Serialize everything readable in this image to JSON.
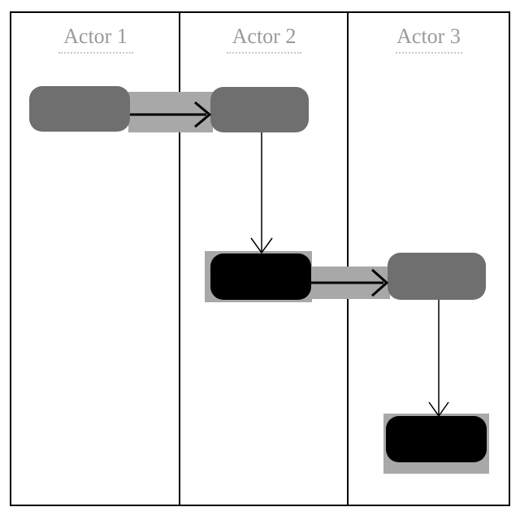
{
  "lanes": [
    {
      "title": "Actor 1"
    },
    {
      "title": "Actor 2"
    },
    {
      "title": "Actor 3"
    }
  ],
  "colors": {
    "activity_grey": "#6f6f6f",
    "activity_black": "#000000",
    "highlight": "#a8a8a8",
    "lane_title": "#9a9a9a",
    "border": "#000000"
  },
  "nodes": [
    {
      "id": "a1-activity",
      "lane": "Actor 1",
      "style": "grey"
    },
    {
      "id": "a2-activity-1",
      "lane": "Actor 2",
      "style": "grey"
    },
    {
      "id": "a2-activity-2",
      "lane": "Actor 2",
      "style": "black"
    },
    {
      "id": "a3-activity-1",
      "lane": "Actor 3",
      "style": "grey"
    },
    {
      "id": "a3-activity-2",
      "lane": "Actor 3",
      "style": "black"
    }
  ],
  "edges": [
    {
      "from": "a1-activity",
      "to": "a2-activity-1",
      "style": "bold"
    },
    {
      "from": "a2-activity-1",
      "to": "a2-activity-2",
      "style": "thin"
    },
    {
      "from": "a2-activity-2",
      "to": "a3-activity-1",
      "style": "bold"
    },
    {
      "from": "a3-activity-1",
      "to": "a3-activity-2",
      "style": "thin"
    }
  ]
}
